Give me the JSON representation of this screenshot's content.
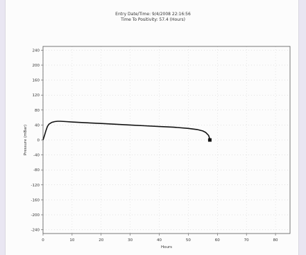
{
  "chart_data": {
    "type": "line",
    "title_line1": "Entry Date/Time: 9/4/2008 22:16:56",
    "title_line2": "Time To Positivity: 57.4 (Hours)",
    "xlabel": "Hours",
    "ylabel": "Pressure (mBar)",
    "xlim": [
      0,
      85
    ],
    "ylim": [
      -250,
      250
    ],
    "xticks": [
      0,
      10,
      20,
      30,
      40,
      50,
      60,
      70,
      80
    ],
    "yticks": [
      240,
      200,
      160,
      120,
      80,
      40,
      0,
      -40,
      -80,
      -120,
      -160,
      -200,
      -240
    ],
    "grid": true,
    "series": [
      {
        "x": [
          0,
          0.5,
          1,
          1.5,
          2,
          3,
          4,
          5,
          6,
          8,
          10,
          15,
          20,
          25,
          30,
          35,
          40,
          45,
          50,
          53,
          55,
          56,
          57,
          57.4
        ],
        "values": [
          0,
          12,
          25,
          36,
          42,
          47,
          49,
          50,
          50,
          49,
          48,
          46,
          44,
          42,
          40,
          38,
          36,
          34,
          31,
          28,
          24,
          20,
          12,
          2
        ]
      }
    ],
    "marker": {
      "x": 57.4,
      "y": 0
    }
  }
}
